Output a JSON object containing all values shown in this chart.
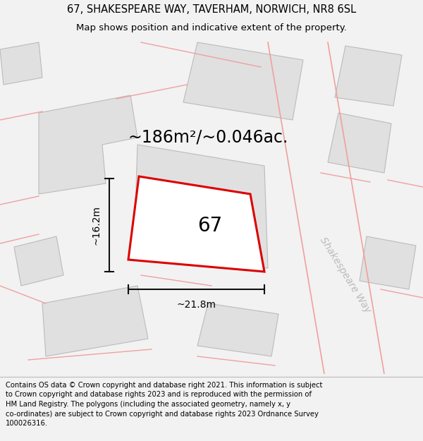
{
  "title_line1": "67, SHAKESPEARE WAY, TAVERHAM, NORWICH, NR8 6SL",
  "title_line2": "Map shows position and indicative extent of the property.",
  "area_text": "~186m²/~0.046ac.",
  "width_label": "~21.8m",
  "height_label": "~16.2m",
  "plot_number": "67",
  "street_label": "Shakespeare Way",
  "footer_lines": [
    "Contains OS data © Crown copyright and database right 2021. This information is subject",
    "to Crown copyright and database rights 2023 and is reproduced with the permission of",
    "HM Land Registry. The polygons (including the associated geometry, namely x, y",
    "co-ordinates) are subject to Crown copyright and database rights 2023 Ordnance Survey",
    "100026316."
  ],
  "bg_color": "#f2f2f2",
  "map_bg": "#ffffff",
  "building_fill": "#e0e0e0",
  "building_edge": "#bbbbbb",
  "plot_fill": "#ffffff",
  "plot_color": "#dd0000",
  "neighbor_outline": "#f0a0a0",
  "dim_color": "#111111",
  "street_color": "#bbbbbb",
  "title_fontsize": 10.5,
  "subtitle_fontsize": 9.5,
  "area_fontsize": 17,
  "plot_num_fontsize": 20,
  "dim_fontsize": 10,
  "street_fontsize": 10,
  "footer_fontsize": 7.2
}
